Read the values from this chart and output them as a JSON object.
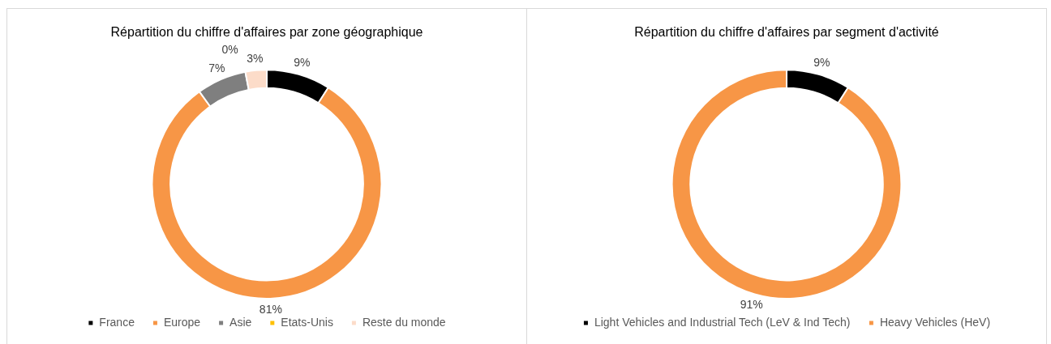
{
  "chart_data": [
    {
      "type": "donut",
      "title": "Répartition du chiffre d'affaires par zone géographique",
      "categories": [
        "France",
        "Europe",
        "Asie",
        "Etats-Unis",
        "Reste du monde"
      ],
      "values": [
        9,
        81,
        7,
        0,
        3
      ],
      "value_labels": [
        "9%",
        "81%",
        "7%",
        "0%",
        "3%"
      ],
      "colors": [
        "#000000",
        "#f79646",
        "#7f7f7f",
        "#ffc000",
        "#fcdcc9"
      ],
      "legend": "bottom"
    },
    {
      "type": "donut",
      "title": "Répartition du chiffre d'affaires par segment d'activité",
      "categories": [
        "Light Vehicles and Industrial Tech (LeV & Ind Tech)",
        "Heavy Vehicles (HeV)"
      ],
      "values": [
        9,
        91
      ],
      "value_labels": [
        "9%",
        "91%"
      ],
      "colors": [
        "#000000",
        "#f79646"
      ],
      "legend": "bottom"
    }
  ]
}
